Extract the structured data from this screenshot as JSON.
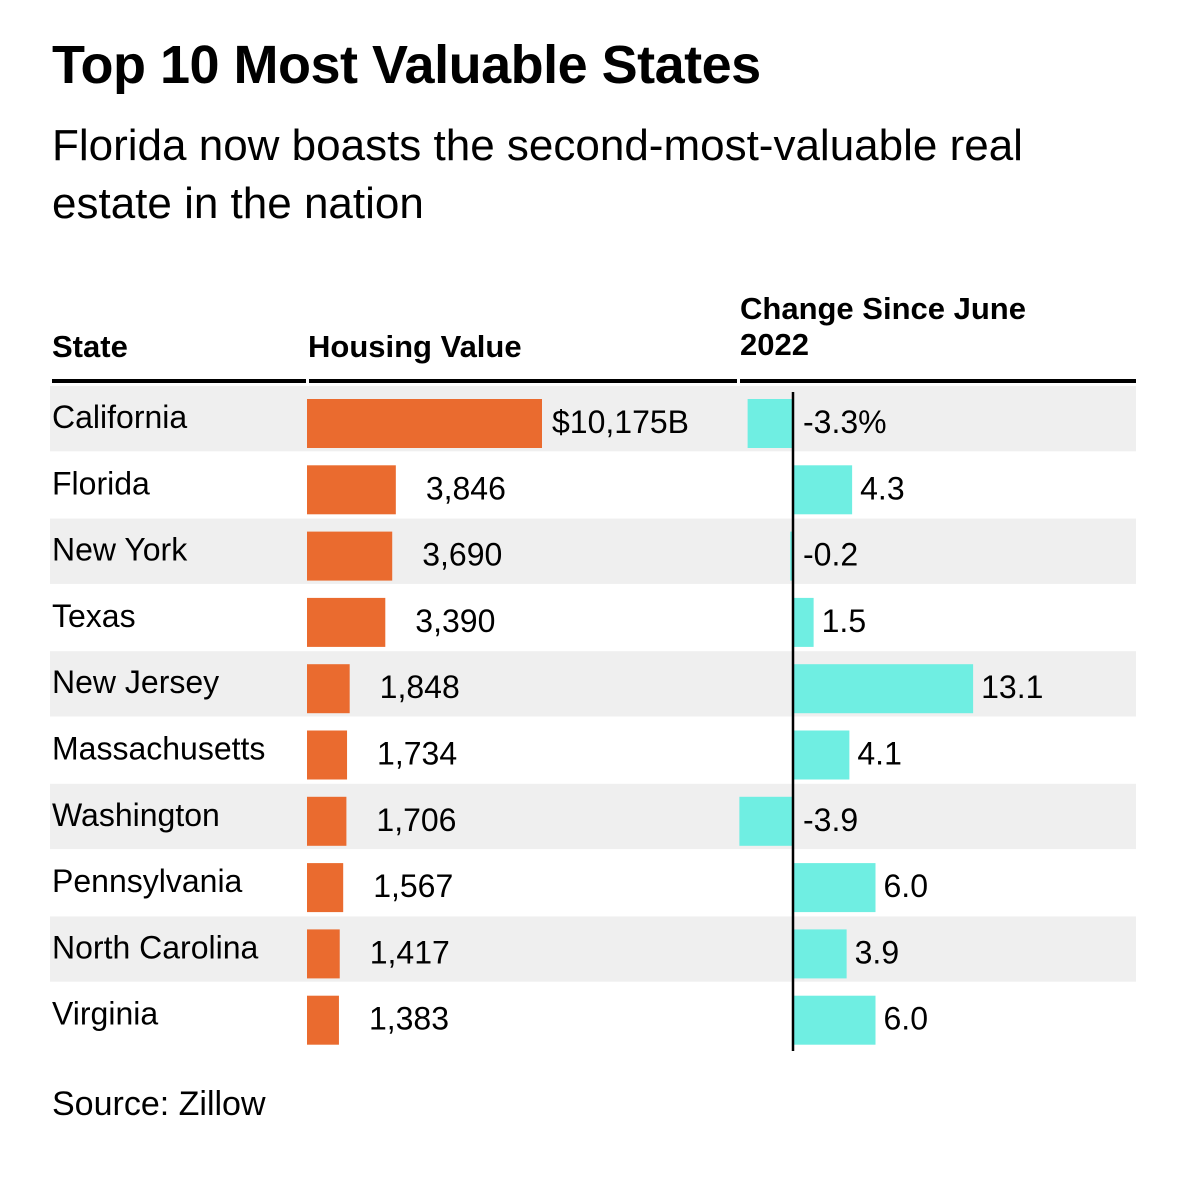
{
  "title": "Top 10 Most Valuable States",
  "subtitle": "Florida now boasts the second-most-valuable real estate in the nation",
  "headers": {
    "state": "State",
    "value": "Housing Value",
    "change": "Change Since June 2022"
  },
  "source": "Source: Zillow",
  "colors": {
    "value_bar": "#ea6b2f",
    "change_bar": "#6feee2",
    "stripe": "#efefef",
    "axis": "#000000"
  },
  "chart_data": {
    "type": "bar",
    "title": "Top 10 Most Valuable States",
    "subtitle": "Florida now boasts the second-most-valuable real estate in the nation",
    "categories": [
      "California",
      "Florida",
      "New York",
      "Texas",
      "New Jersey",
      "Massachusetts",
      "Washington",
      "Pennsylvania",
      "North Carolina",
      "Virginia"
    ],
    "series": [
      {
        "name": "Housing Value",
        "values": [
          10175,
          3846,
          3690,
          3390,
          1848,
          1734,
          1706,
          1567,
          1417,
          1383
        ],
        "labels": [
          "$10,175B",
          "3,846",
          "3,690",
          "3,390",
          "1,848",
          "1,734",
          "1,706",
          "1,567",
          "1,417",
          "1,383"
        ]
      },
      {
        "name": "Change Since June 2022",
        "values": [
          -3.3,
          4.3,
          -0.2,
          1.5,
          13.1,
          4.1,
          -3.9,
          6.0,
          3.9,
          6.0
        ],
        "labels": [
          "-3.3%",
          "4.3",
          "-0.2",
          "1.5",
          "13.1",
          "4.1",
          "-3.9",
          "6.0",
          "3.9",
          "6.0"
        ]
      }
    ],
    "grid": false,
    "legend": "none",
    "source": "Source: Zillow"
  }
}
